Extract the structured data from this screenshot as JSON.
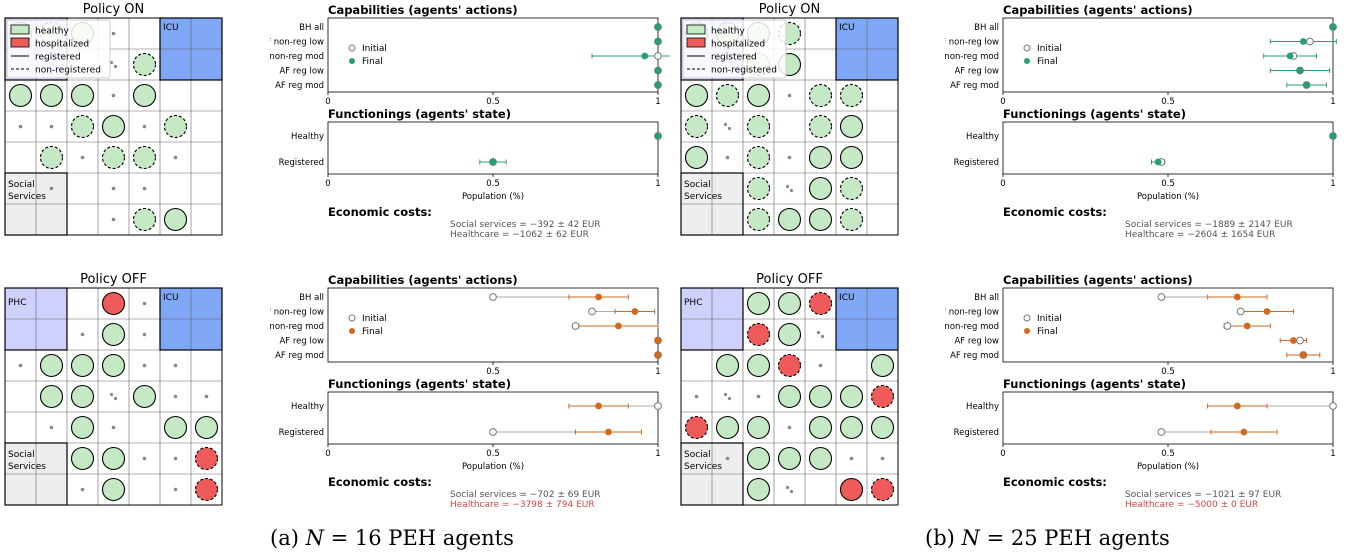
{
  "captions": [
    {
      "prefix": "(a) ",
      "var": "N",
      "rest": " = 16 PEH agents"
    },
    {
      "prefix": "(b) ",
      "var": "N",
      "rest": " = 25 PEH agents"
    }
  ],
  "legend_grid": {
    "healthy": "healthy",
    "hospitalized": "hospitalized",
    "registered": "registered",
    "non_registered": "non-registered"
  },
  "colors": {
    "healthy_fill": "#c5e8c5",
    "hospital_fill": "#ef5b5b",
    "icu_fill": "#7fa7f5",
    "phc_fill": "#cfd0fb",
    "social_fill": "#eeeeee",
    "on_final": "#2a9d78",
    "off_final": "#d2691e",
    "initial": "#888888",
    "cost_red": "#d64545"
  },
  "chart_data": [
    {
      "type": "dot-plot",
      "panel": "a-on",
      "grid": {
        "title": "Policy ON",
        "icu": "ICU",
        "phc": "",
        "social": [
          "Social",
          "Services"
        ],
        "cells": [
          [
            0,
            0,
            "h",
            "reg"
          ],
          [
            1,
            0,
            "h",
            "non"
          ],
          [
            2,
            0,
            "h",
            "reg"
          ],
          [
            3,
            0,
            "d1",
            ""
          ],
          [
            3,
            1,
            "d2",
            ""
          ],
          [
            4,
            1,
            "h",
            "non"
          ],
          [
            0,
            2,
            "h",
            "reg"
          ],
          [
            1,
            2,
            "h",
            "reg"
          ],
          [
            2,
            2,
            "h",
            "reg"
          ],
          [
            3,
            2,
            "d1",
            ""
          ],
          [
            4,
            2,
            "h",
            "reg"
          ],
          [
            0,
            3,
            "d1",
            ""
          ],
          [
            1,
            3,
            "d1",
            ""
          ],
          [
            2,
            3,
            "h",
            "non"
          ],
          [
            3,
            3,
            "h",
            "reg"
          ],
          [
            4,
            3,
            "d1",
            ""
          ],
          [
            5,
            3,
            "h",
            "non"
          ],
          [
            1,
            4,
            "h",
            "non"
          ],
          [
            2,
            4,
            "d1",
            ""
          ],
          [
            3,
            4,
            "h",
            "non"
          ],
          [
            4,
            4,
            "h",
            "non"
          ],
          [
            5,
            4,
            "d1",
            ""
          ],
          [
            1,
            5,
            "d1",
            ""
          ],
          [
            3,
            5,
            "d1",
            ""
          ],
          [
            4,
            5,
            "d1",
            ""
          ],
          [
            3,
            6,
            "d1",
            ""
          ],
          [
            4,
            6,
            "h",
            "non"
          ],
          [
            5,
            6,
            "h",
            "reg"
          ]
        ]
      },
      "capabilities": {
        "title": "Capabilities (agents' actions)",
        "categories": [
          "BH all",
          "AF non-reg low",
          "AF non-reg mod",
          "AF reg low",
          "AF reg mod"
        ],
        "initial": [
          1.0,
          1.0,
          1.0,
          1.0,
          1.0
        ],
        "final": [
          1.0,
          1.0,
          0.96,
          1.0,
          1.0
        ],
        "final_err": [
          0,
          0,
          0.16,
          0,
          0
        ],
        "legend": [
          "Initial",
          "Final"
        ],
        "xticks": [
          "0",
          "0.5",
          "1"
        ]
      },
      "functionings": {
        "title": "Functionings (agents' state)",
        "categories": [
          "Healthy",
          "Registered"
        ],
        "initial": [
          1.0,
          0.5
        ],
        "final": [
          1.0,
          0.5
        ],
        "final_err": [
          0,
          0.04
        ],
        "xlabel": "Population (%)",
        "xticks": [
          "0",
          "0.5",
          "1"
        ]
      },
      "costs": {
        "title": "Economic costs:",
        "social": "Social services = −392 ± 42 EUR",
        "health": "Healthcare = −1062 ± 62 EUR",
        "health_red": false
      }
    },
    {
      "type": "dot-plot",
      "panel": "b-on",
      "grid": {
        "title": "Policy ON",
        "icu": "ICU",
        "phc": "",
        "social": [
          "Social",
          "Services"
        ],
        "cells": [
          [
            0,
            0,
            "h",
            "reg"
          ],
          [
            1,
            0,
            "h",
            "reg"
          ],
          [
            2,
            0,
            "h",
            "reg"
          ],
          [
            3,
            0,
            "h",
            "non"
          ],
          [
            2,
            1,
            "h",
            "non"
          ],
          [
            3,
            1,
            "h",
            "reg"
          ],
          [
            0,
            2,
            "h",
            "reg"
          ],
          [
            1,
            2,
            "h",
            "non"
          ],
          [
            2,
            2,
            "h",
            "reg"
          ],
          [
            3,
            2,
            "d1",
            ""
          ],
          [
            4,
            2,
            "h",
            "non"
          ],
          [
            5,
            2,
            "h",
            "non"
          ],
          [
            0,
            3,
            "h",
            "non"
          ],
          [
            1,
            3,
            "d2",
            ""
          ],
          [
            2,
            3,
            "h",
            "non"
          ],
          [
            4,
            3,
            "h",
            "non"
          ],
          [
            5,
            3,
            "h",
            "reg"
          ],
          [
            0,
            4,
            "h",
            "reg"
          ],
          [
            1,
            4,
            "d1",
            ""
          ],
          [
            2,
            4,
            "h",
            "non"
          ],
          [
            3,
            4,
            "d1",
            ""
          ],
          [
            4,
            4,
            "h",
            "reg"
          ],
          [
            5,
            4,
            "h",
            "reg"
          ],
          [
            2,
            5,
            "h",
            "non"
          ],
          [
            3,
            5,
            "d2",
            ""
          ],
          [
            4,
            5,
            "h",
            "reg"
          ],
          [
            5,
            5,
            "h",
            "non"
          ],
          [
            2,
            6,
            "h",
            "non"
          ],
          [
            3,
            6,
            "h",
            "reg"
          ],
          [
            4,
            6,
            "h",
            "reg"
          ],
          [
            5,
            6,
            "h",
            "non"
          ]
        ]
      },
      "capabilities": {
        "title": "Capabilities (agents' actions)",
        "categories": [
          "BH all",
          "AF non-reg low",
          "AF non-reg mod",
          "AF reg low",
          "AF reg mod"
        ],
        "initial": [
          1.0,
          0.93,
          0.88,
          0.9,
          0.92
        ],
        "final": [
          1.0,
          0.91,
          0.87,
          0.9,
          0.92
        ],
        "final_err": [
          0,
          0.1,
          0.08,
          0.09,
          0.06
        ],
        "legend": [
          "Initial",
          "Final"
        ],
        "xticks": [
          "0",
          "0.5",
          "1"
        ]
      },
      "functionings": {
        "title": "Functionings (agents' state)",
        "categories": [
          "Healthy",
          "Registered"
        ],
        "initial": [
          1.0,
          0.48
        ],
        "final": [
          1.0,
          0.47
        ],
        "final_err": [
          0,
          0.02
        ],
        "xlabel": "Population (%)",
        "xticks": [
          "0",
          "0.5",
          "1"
        ]
      },
      "costs": {
        "title": "Economic costs:",
        "social": "Social services = −1889 ± 2147 EUR",
        "health": "Healthcare = −2604 ± 1654 EUR",
        "health_red": false
      }
    },
    {
      "type": "dot-plot",
      "panel": "a-off",
      "grid": {
        "title": "Policy OFF",
        "icu": "ICU",
        "phc": "PHC",
        "social": [
          "Social",
          "Services"
        ],
        "cells": [
          [
            3,
            0,
            "r",
            "reg"
          ],
          [
            4,
            0,
            "d1",
            ""
          ],
          [
            2,
            1,
            "d1",
            ""
          ],
          [
            3,
            1,
            "h",
            "reg"
          ],
          [
            4,
            1,
            "d1",
            ""
          ],
          [
            0,
            2,
            "d1",
            ""
          ],
          [
            1,
            2,
            "h",
            "reg"
          ],
          [
            2,
            2,
            "h",
            "reg"
          ],
          [
            3,
            2,
            "h",
            "reg"
          ],
          [
            4,
            2,
            "d1",
            ""
          ],
          [
            5,
            2,
            "d1",
            ""
          ],
          [
            1,
            3,
            "h",
            "reg"
          ],
          [
            2,
            3,
            "h",
            "reg"
          ],
          [
            3,
            3,
            "d2",
            ""
          ],
          [
            4,
            3,
            "h",
            "reg"
          ],
          [
            5,
            3,
            "d1",
            ""
          ],
          [
            6,
            3,
            "d1",
            ""
          ],
          [
            1,
            4,
            "d1",
            ""
          ],
          [
            2,
            4,
            "h",
            "reg"
          ],
          [
            3,
            4,
            "d1",
            ""
          ],
          [
            5,
            4,
            "h",
            "reg"
          ],
          [
            6,
            4,
            "h",
            "reg"
          ],
          [
            2,
            5,
            "h",
            "reg"
          ],
          [
            3,
            5,
            "h",
            "reg"
          ],
          [
            4,
            5,
            "d1",
            ""
          ],
          [
            5,
            5,
            "d1",
            ""
          ],
          [
            6,
            5,
            "r",
            "non"
          ],
          [
            2,
            6,
            "d1",
            ""
          ],
          [
            3,
            6,
            "h",
            "reg"
          ],
          [
            5,
            6,
            "d1",
            ""
          ],
          [
            6,
            6,
            "r",
            "non"
          ]
        ]
      },
      "capabilities": {
        "title": "Capabilities (agents' actions)",
        "categories": [
          "BH all",
          "AF non-reg low",
          "AF non-reg mod",
          "AF reg low",
          "AF reg mod"
        ],
        "initial": [
          0.5,
          0.8,
          0.75,
          1.0,
          1.0
        ],
        "final": [
          0.82,
          0.93,
          0.88,
          1.0,
          1.0
        ],
        "final_err": [
          0.09,
          0.06,
          0.12,
          0,
          0
        ],
        "legend": [
          "Initial",
          "Final"
        ],
        "xticks": [
          "0.5",
          "1"
        ]
      },
      "functionings": {
        "title": "Functionings (agents' state)",
        "categories": [
          "Healthy",
          "Registered"
        ],
        "initial": [
          1.0,
          0.5
        ],
        "final": [
          0.82,
          0.85
        ],
        "final_err": [
          0.09,
          0.1
        ],
        "xlabel": "Population (%)",
        "xticks": [
          "0",
          "0.5",
          "1"
        ]
      },
      "costs": {
        "title": "Economic costs:",
        "social": "Social services = −702 ± 69 EUR",
        "health": "Healthcare = −3798 ± 794 EUR",
        "health_red": true
      }
    },
    {
      "type": "dot-plot",
      "panel": "b-off",
      "grid": {
        "title": "Policy OFF",
        "icu": "ICU",
        "phc": "PHC",
        "social": [
          "Social",
          "Services"
        ],
        "cells": [
          [
            2,
            0,
            "h",
            "reg"
          ],
          [
            3,
            0,
            "h",
            "reg"
          ],
          [
            4,
            0,
            "r",
            "non"
          ],
          [
            2,
            1,
            "r",
            "non"
          ],
          [
            3,
            1,
            "h",
            "reg"
          ],
          [
            4,
            1,
            "d2",
            ""
          ],
          [
            1,
            2,
            "h",
            "reg"
          ],
          [
            2,
            2,
            "h",
            "reg"
          ],
          [
            3,
            2,
            "r",
            "non"
          ],
          [
            4,
            2,
            "d1",
            ""
          ],
          [
            6,
            2,
            "h",
            "reg"
          ],
          [
            0,
            3,
            "d1",
            ""
          ],
          [
            1,
            3,
            "d2",
            ""
          ],
          [
            2,
            3,
            "d1",
            ""
          ],
          [
            3,
            3,
            "h",
            "reg"
          ],
          [
            4,
            3,
            "h",
            "reg"
          ],
          [
            5,
            3,
            "h",
            "reg"
          ],
          [
            6,
            3,
            "r",
            "non"
          ],
          [
            0,
            4,
            "r",
            "non"
          ],
          [
            1,
            4,
            "h",
            "reg"
          ],
          [
            2,
            4,
            "h",
            "reg"
          ],
          [
            3,
            4,
            "d1",
            ""
          ],
          [
            4,
            4,
            "h",
            "reg"
          ],
          [
            5,
            4,
            "h",
            "reg"
          ],
          [
            6,
            4,
            "h",
            "reg"
          ],
          [
            1,
            5,
            "d1",
            ""
          ],
          [
            2,
            5,
            "h",
            "reg"
          ],
          [
            3,
            5,
            "h",
            "reg"
          ],
          [
            4,
            5,
            "h",
            "reg"
          ],
          [
            5,
            5,
            "d1",
            ""
          ],
          [
            6,
            5,
            "d1",
            ""
          ],
          [
            2,
            6,
            "h",
            "reg"
          ],
          [
            3,
            6,
            "d2",
            ""
          ],
          [
            5,
            6,
            "r",
            "reg"
          ],
          [
            6,
            6,
            "r",
            "non"
          ]
        ]
      },
      "capabilities": {
        "title": "Capabilities (agents' actions)",
        "categories": [
          "BH all",
          "AF non-reg low",
          "AF non-reg mod",
          "AF reg low",
          "AF reg mod"
        ],
        "initial": [
          0.48,
          0.72,
          0.68,
          0.9,
          0.91
        ],
        "final": [
          0.71,
          0.8,
          0.74,
          0.88,
          0.91
        ],
        "final_err": [
          0.09,
          0.08,
          0.07,
          0.04,
          0.05
        ],
        "legend": [
          "Initial",
          "Final"
        ],
        "xticks": [
          "0.5",
          "1"
        ]
      },
      "functionings": {
        "title": "Functionings (agents' state)",
        "categories": [
          "Healthy",
          "Registered"
        ],
        "initial": [
          1.0,
          0.48
        ],
        "final": [
          0.71,
          0.73
        ],
        "final_err": [
          0.09,
          0.1
        ],
        "xlabel": "Population (%)",
        "xticks": [
          "0",
          "0.5",
          "1"
        ]
      },
      "costs": {
        "title": "Economic costs:",
        "social": "Social services = −1021 ± 97 EUR",
        "health": "Healthcare = −5000 ± 0 EUR",
        "health_red": true
      }
    }
  ]
}
